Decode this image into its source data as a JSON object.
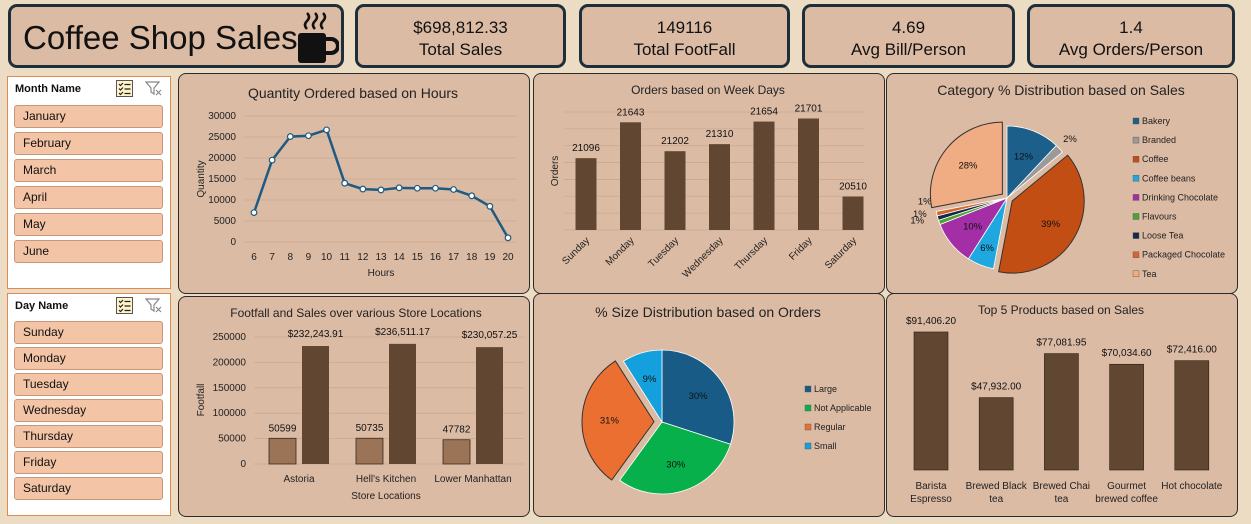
{
  "title": "Coffee Shop Sales",
  "icons": {
    "title": "coffee-cup-icon",
    "multiselect": "multiselect-icon",
    "filter": "clear-filter-icon"
  },
  "kpis": [
    {
      "value": "$698,812.33",
      "label": "Total Sales"
    },
    {
      "value": "149116",
      "label": "Total FootFall"
    },
    {
      "value": "4.69",
      "label": "Avg Bill/Person"
    },
    {
      "value": "1.4",
      "label": "Avg Orders/Person"
    }
  ],
  "month_slicer": {
    "title": "Month Name",
    "items": [
      "January",
      "February",
      "March",
      "April",
      "May",
      "June"
    ]
  },
  "day_slicer": {
    "title": "Day Name",
    "items": [
      "Sunday",
      "Monday",
      "Tuesday",
      "Wednesday",
      "Thursday",
      "Friday",
      "Saturday"
    ]
  },
  "colors": {
    "bar": "#614732",
    "line": "#1e5a82",
    "bar_light": "#9b7356",
    "panel": "#dcbba4",
    "background": "#ecdcc4"
  },
  "chart_data": [
    {
      "id": "hours",
      "type": "line",
      "title": "Quantity Ordered based on Hours",
      "xlabel": "Hours",
      "ylabel": "Quantity",
      "x": [
        6,
        7,
        8,
        9,
        10,
        11,
        12,
        13,
        14,
        15,
        16,
        17,
        18,
        19,
        20
      ],
      "y": [
        7000,
        19500,
        25100,
        25300,
        26700,
        14000,
        12600,
        12400,
        12900,
        12800,
        12800,
        12500,
        11000,
        8500,
        1000
      ],
      "ylim": [
        0,
        30000
      ],
      "yticks": [
        "0",
        "5000",
        "10000",
        "15000",
        "20000",
        "25000",
        "30000"
      ],
      "grid": true
    },
    {
      "id": "weekdays",
      "type": "bar",
      "title": "Orders based on Week Days",
      "ylabel": "Orders",
      "categories": [
        "Sunday",
        "Monday",
        "Tuesday",
        "Wednesday",
        "Thursday",
        "Friday",
        "Saturday"
      ],
      "values": [
        21096,
        21643,
        21202,
        21310,
        21654,
        21701,
        20510
      ],
      "labels": [
        "21096",
        "21643",
        "21202",
        "21310",
        "21654",
        "21701",
        "20510"
      ],
      "ylim": [
        20000,
        21800
      ],
      "grid": true
    },
    {
      "id": "category",
      "type": "pie",
      "title": "Category % Distribution based on Sales",
      "categories": [
        "Bakery",
        "Branded",
        "Coffee",
        "Coffee beans",
        "Drinking Chocolate",
        "Flavours",
        "Loose Tea",
        "Packaged Chocolate",
        "Tea"
      ],
      "values": [
        12,
        2,
        39,
        6,
        10,
        1,
        1,
        1,
        28
      ],
      "labels": [
        "12%",
        "2%",
        "39%",
        "6%",
        "10%",
        "1%",
        "1%",
        "1%",
        "28%"
      ],
      "colors": [
        "#1b5f8a",
        "#9a9a9a",
        "#c24e14",
        "#1fa8e0",
        "#a32ea6",
        "#4aa632",
        "#13294a",
        "#d5662c",
        "#f0ac82"
      ],
      "legend": "right"
    },
    {
      "id": "locations",
      "type": "bar",
      "title": "Footfall and Sales over various Store Locations",
      "xlabel": "Store Locations",
      "ylabel": "Footfall",
      "categories": [
        "Astoria",
        "Hell's Kitchen",
        "Lower Manhattan"
      ],
      "series": [
        {
          "values": [
            50599,
            50735,
            47782
          ],
          "labels": [
            "50599",
            "50735",
            "47782"
          ]
        },
        {
          "values": [
            232243.91,
            236511.17,
            230057.25
          ],
          "labels": [
            "$232,243.91",
            "$236,511.17",
            "$230,057.25"
          ]
        }
      ],
      "ylim": [
        0,
        250000
      ],
      "yticks": [
        "0",
        "50000",
        "100000",
        "150000",
        "200000",
        "250000"
      ],
      "grid": true
    },
    {
      "id": "size",
      "type": "pie",
      "title": "% Size Distribution based on Orders",
      "categories": [
        "Large",
        "Not Applicable",
        "Regular",
        "Small"
      ],
      "values": [
        30,
        30,
        31,
        9
      ],
      "labels": [
        "30%",
        "30%",
        "31%",
        "9%"
      ],
      "colors": [
        "#175b86",
        "#08b04c",
        "#ec6f32",
        "#14a0dc"
      ],
      "legend": "right"
    },
    {
      "id": "top5",
      "type": "bar",
      "title": "Top 5 Products based on Sales",
      "categories": [
        [
          "Barista",
          "Espresso"
        ],
        [
          "Brewed Black",
          "tea"
        ],
        [
          "Brewed Chai",
          "tea"
        ],
        [
          "Gourmet",
          "brewed coffee"
        ],
        [
          "Hot chocolate"
        ]
      ],
      "values": [
        91406.2,
        47932.0,
        77081.95,
        70034.6,
        72416.0
      ],
      "labels": [
        "$91,406.20",
        "$47,932.00",
        "$77,081.95",
        "$70,034.60",
        "$72,416.00"
      ],
      "ylim": [
        0,
        100000
      ]
    }
  ]
}
